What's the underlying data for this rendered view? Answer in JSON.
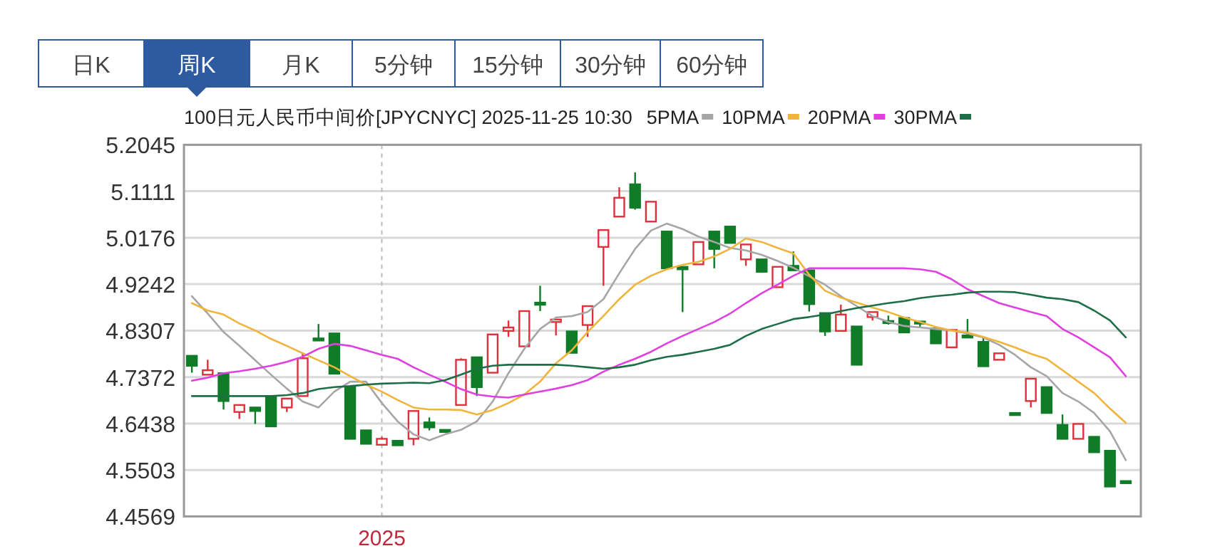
{
  "chart_data": {
    "type": "candlestick",
    "title": "100日元人民币中间价[JPYCNYC] 2025-11-25 10:30",
    "annotations": [
      "日K",
      "周K",
      "月K",
      "5分钟",
      "15分钟",
      "30分钟",
      "60分钟"
    ],
    "categories": [
      null,
      null,
      null,
      null,
      null,
      null,
      null,
      null,
      null,
      null,
      null,
      null,
      "2025",
      null,
      null,
      null,
      null,
      null,
      null,
      null,
      null,
      null,
      null,
      null,
      null,
      null,
      null,
      null,
      null,
      null,
      null,
      null,
      null,
      null,
      null,
      null,
      null,
      null,
      null,
      null,
      null,
      null,
      null,
      null,
      null,
      null,
      null,
      null,
      null,
      null,
      null,
      null,
      null,
      null,
      null,
      null,
      null,
      null,
      null,
      null
    ],
    "ylim": [
      4.4569,
      5.2045
    ],
    "yticks": [
      4.4569,
      4.5503,
      4.6438,
      4.7372,
      4.8307,
      4.9242,
      5.0176,
      5.1111,
      5.2045
    ],
    "grid": true,
    "legend": "top right",
    "ohlc": [
      [
        4.78,
        4.78,
        4.746,
        4.76
      ],
      [
        4.742,
        4.772,
        4.742,
        4.751
      ],
      [
        4.745,
        4.745,
        4.672,
        4.689
      ],
      [
        4.667,
        4.681,
        4.653,
        4.681
      ],
      [
        4.676,
        4.676,
        4.643,
        4.669
      ],
      [
        4.697,
        4.697,
        4.638,
        4.638
      ],
      [
        4.676,
        4.694,
        4.667,
        4.694
      ],
      [
        4.699,
        4.786,
        4.699,
        4.775
      ],
      [
        4.815,
        4.844,
        4.812,
        4.812
      ],
      [
        4.825,
        4.825,
        4.744,
        4.744
      ],
      [
        4.717,
        4.717,
        4.613,
        4.613
      ],
      [
        4.63,
        4.63,
        4.603,
        4.603
      ],
      [
        4.601,
        4.617,
        4.601,
        4.613
      ],
      [
        4.609,
        4.609,
        4.6,
        4.6
      ],
      [
        4.613,
        4.669,
        4.6,
        4.669
      ],
      [
        4.646,
        4.656,
        4.63,
        4.636
      ],
      [
        4.631,
        4.631,
        4.628,
        4.628
      ],
      [
        4.681,
        4.775,
        4.681,
        4.772
      ],
      [
        4.777,
        4.777,
        4.699,
        4.717
      ],
      [
        4.746,
        4.823,
        4.746,
        4.823
      ],
      [
        4.83,
        4.851,
        4.818,
        4.837
      ],
      [
        4.799,
        4.87,
        4.799,
        4.87
      ],
      [
        4.887,
        4.921,
        4.87,
        4.883
      ],
      [
        4.848,
        4.853,
        4.821,
        4.853
      ],
      [
        4.829,
        4.829,
        4.786,
        4.786
      ],
      [
        4.842,
        4.88,
        4.818,
        4.88
      ],
      [
        4.999,
        5.033,
        4.921,
        5.033
      ],
      [
        5.06,
        5.119,
        5.06,
        5.098
      ],
      [
        5.125,
        5.149,
        5.074,
        5.078
      ],
      [
        5.05,
        5.09,
        5.05,
        5.09
      ],
      [
        5.03,
        5.03,
        4.956,
        4.956
      ],
      [
        4.959,
        4.959,
        4.868,
        4.954
      ],
      [
        4.964,
        5.009,
        4.964,
        5.009
      ],
      [
        5.03,
        5.03,
        4.956,
        4.995
      ],
      [
        5.04,
        5.04,
        5.007,
        5.007
      ],
      [
        4.974,
        5.004,
        4.961,
        5.004
      ],
      [
        4.974,
        4.974,
        4.949,
        4.949
      ],
      [
        4.918,
        4.959,
        4.918,
        4.959
      ],
      [
        4.961,
        4.99,
        4.952,
        4.952
      ],
      [
        4.952,
        4.952,
        4.869,
        4.884
      ],
      [
        4.866,
        4.866,
        4.82,
        4.829
      ],
      [
        4.83,
        4.883,
        4.83,
        4.863
      ],
      [
        4.839,
        4.839,
        4.762,
        4.762
      ],
      [
        4.858,
        4.868,
        4.851,
        4.868
      ],
      [
        4.85,
        4.861,
        4.843,
        4.849
      ],
      [
        4.856,
        4.856,
        4.827,
        4.827
      ],
      [
        4.849,
        4.849,
        4.837,
        4.846
      ],
      [
        4.835,
        4.835,
        4.805,
        4.805
      ],
      [
        4.797,
        4.832,
        4.797,
        4.832
      ],
      [
        4.821,
        4.854,
        4.818,
        4.818
      ],
      [
        4.808,
        4.818,
        4.759,
        4.759
      ],
      [
        4.772,
        4.785,
        4.772,
        4.785
      ],
      [
        4.665,
        4.665,
        4.663,
        4.663
      ],
      [
        4.689,
        4.734,
        4.676,
        4.734
      ],
      [
        4.717,
        4.717,
        4.665,
        4.665
      ],
      [
        4.641,
        4.662,
        4.613,
        4.613
      ],
      [
        4.613,
        4.643,
        4.613,
        4.643
      ],
      [
        4.617,
        4.617,
        4.586,
        4.586
      ],
      [
        4.589,
        4.589,
        4.517,
        4.517
      ],
      [
        4.528,
        4.528,
        4.525,
        4.525
      ]
    ],
    "series": [
      {
        "name": "5PMA",
        "type": "line",
        "color": "#a6a6a6",
        "values": [
          4.9,
          4.865,
          4.828,
          4.8,
          4.771,
          4.742,
          4.714,
          4.688,
          4.676,
          4.708,
          4.728,
          4.728,
          4.685,
          4.648,
          4.622,
          4.61,
          4.622,
          4.631,
          4.648,
          4.688,
          4.745,
          4.794,
          4.834,
          4.857,
          4.86,
          4.868,
          4.894,
          4.946,
          4.995,
          5.032,
          5.046,
          5.035,
          5.02,
          5.009,
          4.997,
          4.992,
          4.983,
          4.971,
          4.957,
          4.94,
          4.923,
          4.9,
          4.88,
          4.86,
          4.848,
          4.84,
          4.837,
          4.834,
          4.831,
          4.825,
          4.817,
          4.802,
          4.782,
          4.757,
          4.739,
          4.705,
          4.688,
          4.665,
          4.628,
          4.57
        ]
      },
      {
        "name": "10PMA",
        "type": "line",
        "color": "#f0b43c",
        "values": [
          4.886,
          4.871,
          4.863,
          4.845,
          4.831,
          4.814,
          4.8,
          4.785,
          4.771,
          4.757,
          4.739,
          4.722,
          4.708,
          4.691,
          4.676,
          4.672,
          4.672,
          4.671,
          4.662,
          4.671,
          4.685,
          4.702,
          4.728,
          4.765,
          4.791,
          4.828,
          4.86,
          4.894,
          4.923,
          4.941,
          4.954,
          4.963,
          4.969,
          4.98,
          4.995,
          5.016,
          5.009,
          4.997,
          4.986,
          4.943,
          4.911,
          4.897,
          4.887,
          4.877,
          4.868,
          4.857,
          4.848,
          4.838,
          4.831,
          4.827,
          4.818,
          4.808,
          4.797,
          4.784,
          4.774,
          4.751,
          4.728,
          4.705,
          4.674,
          4.645
        ]
      },
      {
        "name": "20PMA",
        "type": "line",
        "color": "#e040e0",
        "values": [
          4.73,
          4.736,
          4.745,
          4.749,
          4.754,
          4.76,
          4.768,
          4.778,
          4.794,
          4.804,
          4.8,
          4.791,
          4.782,
          4.774,
          4.757,
          4.742,
          4.728,
          4.713,
          4.702,
          4.698,
          4.696,
          4.702,
          4.708,
          4.714,
          4.721,
          4.731,
          4.748,
          4.762,
          4.774,
          4.788,
          4.805,
          4.82,
          4.834,
          4.848,
          4.865,
          4.886,
          4.906,
          4.923,
          4.941,
          4.956,
          4.956,
          4.956,
          4.956,
          4.956,
          4.956,
          4.956,
          4.954,
          4.949,
          4.934,
          4.914,
          4.9,
          4.886,
          4.877,
          4.868,
          4.86,
          4.834,
          4.817,
          4.797,
          4.777,
          4.739
        ]
      },
      {
        "name": "30PMA",
        "type": "line",
        "color": "#1e6e46",
        "values": [
          4.699,
          4.699,
          4.699,
          4.699,
          4.699,
          4.699,
          4.701,
          4.705,
          4.713,
          4.717,
          4.719,
          4.722,
          4.724,
          4.725,
          4.726,
          4.725,
          4.731,
          4.742,
          4.754,
          4.76,
          4.762,
          4.762,
          4.762,
          4.762,
          4.76,
          4.757,
          4.754,
          4.757,
          4.762,
          4.771,
          4.778,
          4.782,
          4.788,
          4.794,
          4.802,
          4.82,
          4.834,
          4.844,
          4.854,
          4.858,
          4.863,
          4.87,
          4.876,
          4.881,
          4.886,
          4.89,
          4.896,
          4.9,
          4.903,
          4.907,
          4.909,
          4.909,
          4.908,
          4.903,
          4.897,
          4.894,
          4.888,
          4.871,
          4.851,
          4.817
        ]
      }
    ]
  }
}
